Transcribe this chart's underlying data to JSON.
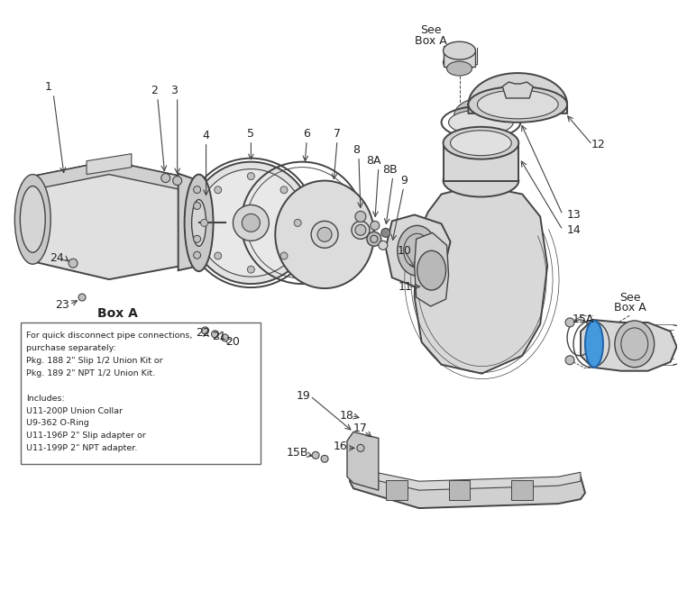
{
  "background_color": "#ffffff",
  "line_color": "#444444",
  "text_color": "#222222",
  "fill_light": "#e8e8e8",
  "fill_mid": "#d5d5d5",
  "fill_dark": "#c0c0c0",
  "box_a_title": "Box A",
  "box_a_lines": [
    "For quick disconnect pipe connections,",
    "purchase separately:",
    "Pkg. 188 2\" Slip 1/2 Union Kit or",
    "Pkg. 189 2\" NPT 1/2 Union Kit.",
    "",
    "Includes:",
    "U11-200P Union Collar",
    "U9-362 O-Ring",
    "U11-196P 2\" Slip adapter or",
    "U11-199P 2\" NPT adapter."
  ],
  "figsize": [
    7.52,
    6.76
  ],
  "dpi": 100
}
